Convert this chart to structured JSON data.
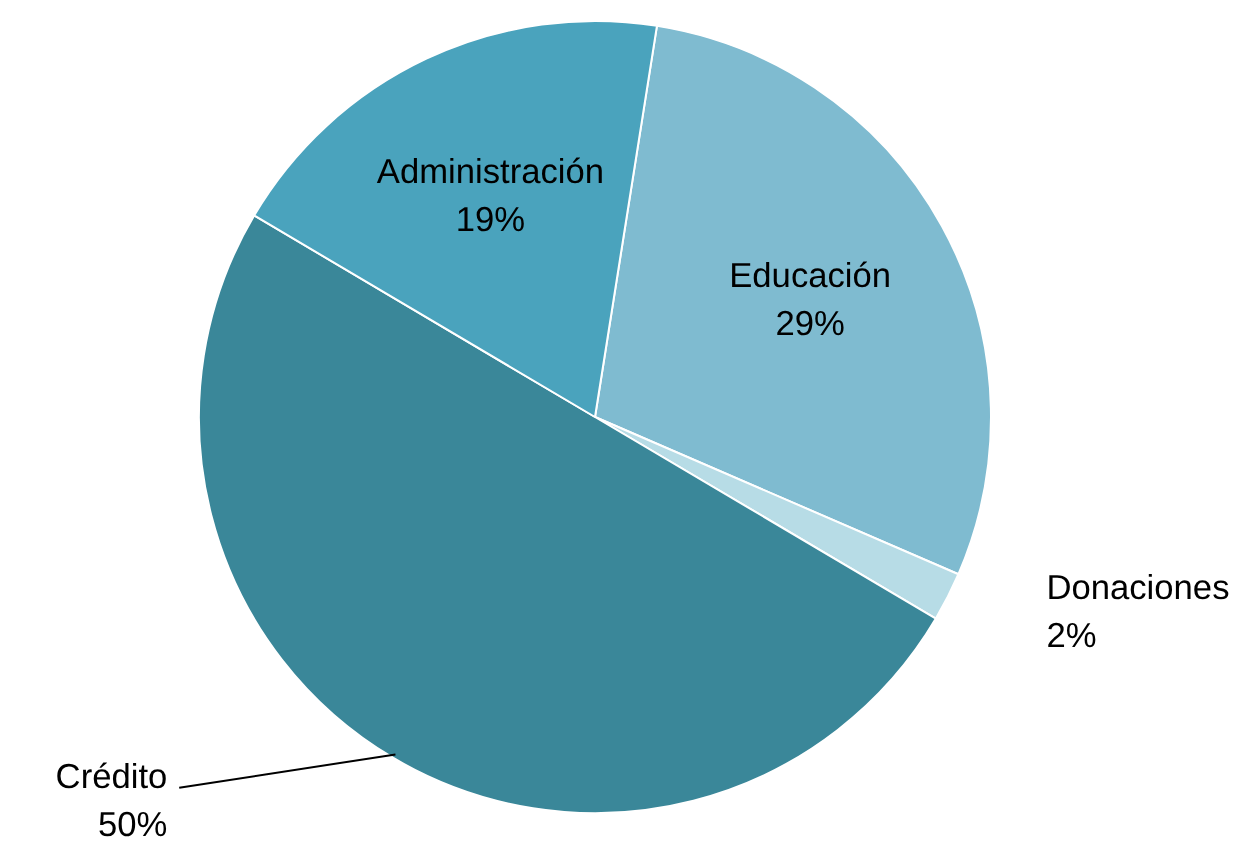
{
  "chart_data": {
    "type": "pie",
    "categories": [
      "Educación",
      "Donaciones",
      "Crédito",
      "Administración"
    ],
    "values": [
      29,
      2,
      50,
      19
    ],
    "colors": [
      "#7fbbd0",
      "#b7dce6",
      "#3a8799",
      "#4aa3bd"
    ],
    "value_labels": [
      "29%",
      "2%",
      "50%",
      "19%"
    ]
  }
}
